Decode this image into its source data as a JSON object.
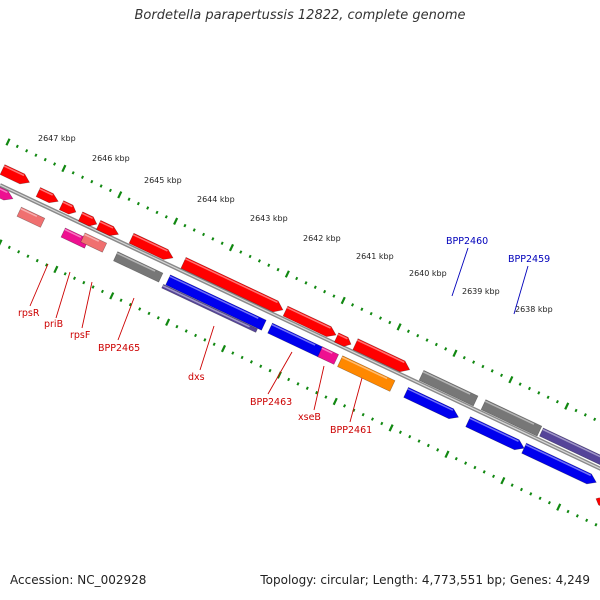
{
  "title": "Bordetella parapertussis 12822, complete genome",
  "footer": {
    "accession": "Accession: NC_002928",
    "summary": "Topology: circular; Length: 4,773,551 bp; Genes: 4,249"
  },
  "colors": {
    "backbone": "#8a8a8a",
    "tick": "#118811",
    "label_red": "#cc0000",
    "label_blue": "#0000bb",
    "gene_red": "#ff0000",
    "gene_pink": "#f07070",
    "gene_magenta": "#ee1090",
    "gene_gray": "#777777",
    "gene_blue": "#0000ee",
    "gene_orange": "#ff8800",
    "gene_slate": "#554499"
  },
  "scale_labels": [
    "2647 kbp",
    "2646 kbp",
    "2645 kbp",
    "2644 kbp",
    "2643 kbp",
    "2642 kbp",
    "2641 kbp",
    "2640 kbp",
    "2639 kbp",
    "2638 kbp"
  ],
  "gene_labels": [
    {
      "text": "rpsR",
      "color": "red"
    },
    {
      "text": "priB",
      "color": "red"
    },
    {
      "text": "rpsF",
      "color": "red"
    },
    {
      "text": "BPP2465",
      "color": "red"
    },
    {
      "text": "dxs",
      "color": "red"
    },
    {
      "text": "BPP2463",
      "color": "red"
    },
    {
      "text": "xseB",
      "color": "red"
    },
    {
      "text": "BPP2461",
      "color": "red"
    },
    {
      "text": "BPP2460",
      "color": "blue"
    },
    {
      "text": "BPP2459",
      "color": "blue"
    }
  ]
}
